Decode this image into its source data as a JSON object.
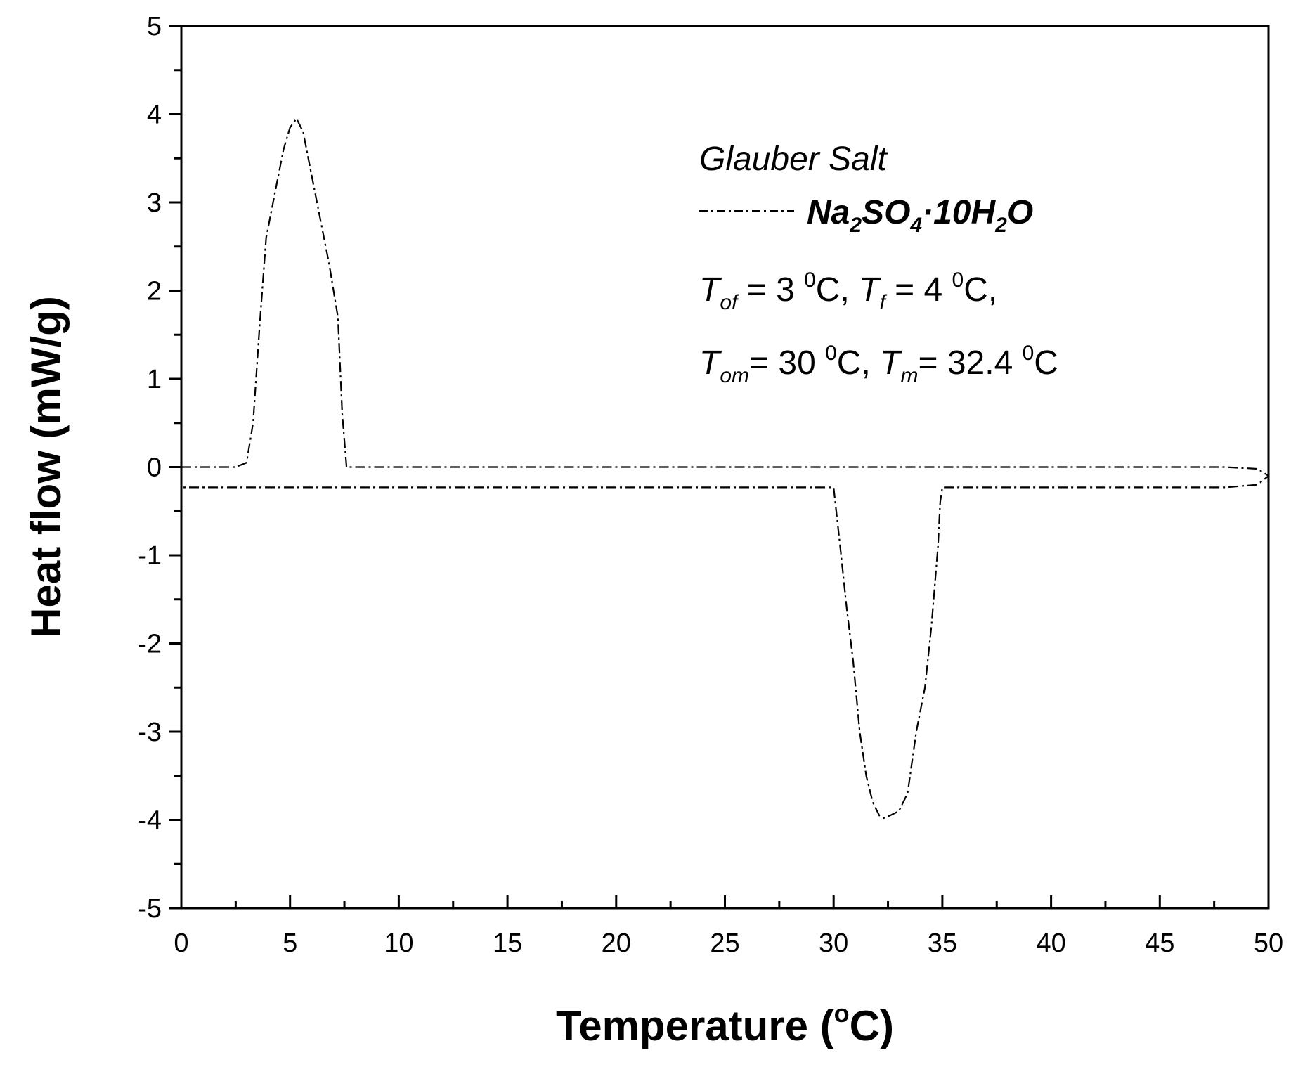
{
  "chart_data": {
    "type": "line",
    "xlabel": "Temperature (°C)",
    "xlabel_parts": {
      "main": "Temperature (",
      "sup": "o",
      "end": "C)"
    },
    "ylabel": "Heat flow (mW/g)",
    "xlim": [
      0,
      50
    ],
    "ylim": [
      -5,
      5
    ],
    "x_ticks": [
      "0",
      "5",
      "10",
      "15",
      "20",
      "25",
      "30",
      "35",
      "40",
      "45",
      "50"
    ],
    "y_ticks": [
      "5",
      "4",
      "3",
      "2",
      "1",
      "0",
      "-1",
      "-2",
      "-3",
      "-4",
      "-5"
    ],
    "grid": false,
    "line_color": "#000000",
    "line_style": "dash-dot",
    "series": [
      {
        "name": "Na2SO4·10H2O",
        "x": [
          0.0,
          2.5,
          3.0,
          3.3,
          3.6,
          3.9,
          4.3,
          4.7,
          5.0,
          5.3,
          5.6,
          6.0,
          6.4,
          6.8,
          7.2,
          7.4,
          7.6,
          10,
          20,
          30,
          40,
          48,
          49.5,
          50,
          49.5,
          48,
          40,
          35.0,
          34.9,
          34.8,
          34.5,
          34.2,
          33.8,
          33.4,
          33.0,
          32.6,
          32.3,
          32.1,
          31.8,
          31.5,
          31.2,
          30.9,
          30.6,
          30.3,
          30.0,
          25,
          15,
          5,
          0.0
        ],
        "y": [
          0.0,
          0.0,
          0.05,
          0.5,
          1.6,
          2.6,
          3.1,
          3.6,
          3.85,
          3.95,
          3.8,
          3.3,
          2.8,
          2.3,
          1.7,
          0.6,
          0.0,
          0.0,
          0.0,
          0.0,
          0.0,
          0.0,
          -0.02,
          -0.1,
          -0.2,
          -0.23,
          -0.23,
          -0.23,
          -0.4,
          -0.9,
          -1.8,
          -2.5,
          -3.0,
          -3.7,
          -3.9,
          -3.95,
          -3.98,
          -3.95,
          -3.8,
          -3.5,
          -3.0,
          -2.2,
          -1.6,
          -0.9,
          -0.23,
          -0.23,
          -0.23,
          -0.23,
          -0.23
        ]
      }
    ],
    "legend": {
      "placement": "top-right",
      "title": "Glauber Salt",
      "series_label": {
        "a": "Na",
        "s1": "2",
        "b": "SO",
        "s2": "4",
        "c": "·10H",
        "s3": "2",
        "d": "O"
      },
      "line1": {
        "t1": "T",
        "sub1": "of",
        "v1": " = 3 ",
        "sup1": "0",
        "u1": "C, ",
        "t2": "T",
        "sub2": "f",
        "v2": " = 4 ",
        "sup2": "0",
        "u2": "C,"
      },
      "line2": {
        "t1": "T",
        "sub1": "om",
        "v1": "= 30 ",
        "sup1": "0",
        "u1": "C, ",
        "t2": "T",
        "sub2": "m",
        "v2": "= 32.4 ",
        "sup2": "0",
        "u2": "C"
      }
    }
  }
}
